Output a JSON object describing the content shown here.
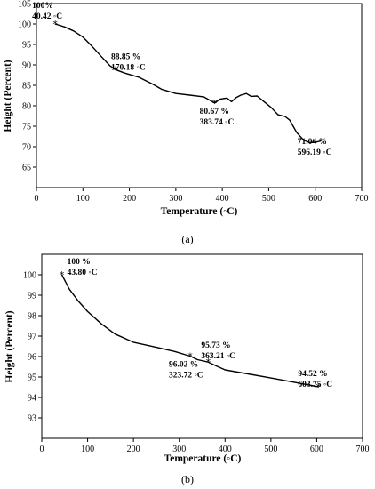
{
  "chart_data": [
    {
      "type": "line",
      "panel": "a",
      "caption": "(a)",
      "xlabel": "Temperature (◦C)",
      "ylabel": "Height (Percent)",
      "xlim": [
        0,
        700
      ],
      "ylim": [
        60,
        105
      ],
      "xticks": [
        "0",
        "100",
        "200",
        "300",
        "400",
        "500",
        "600",
        "700"
      ],
      "yticks": [
        "65",
        "70",
        "75",
        "80",
        "85",
        "90",
        "95",
        "100",
        "105"
      ],
      "series": [
        {
          "x": [
            40.42,
            60,
            80,
            100,
            120,
            140,
            158,
            170.18,
            190,
            220,
            250,
            270,
            300,
            330,
            360,
            383.74,
            395,
            410,
            420,
            430,
            440,
            452,
            462,
            475,
            490,
            505,
            520,
            535,
            545,
            560,
            575,
            588,
            596.19,
            605,
            612
          ],
          "y": [
            100,
            99.3,
            98.3,
            96.8,
            94.5,
            92.0,
            89.8,
            88.85,
            88.0,
            87.0,
            85.3,
            84.0,
            83.0,
            82.6,
            82.2,
            80.67,
            81.6,
            81.9,
            81.0,
            82.0,
            82.6,
            83.0,
            82.3,
            82.4,
            81.0,
            79.6,
            77.8,
            77.4,
            76.5,
            73.5,
            71.6,
            71.0,
            71.04,
            71.2,
            71.4
          ]
        }
      ],
      "markers": [
        {
          "x": 40.42,
          "y": 100,
          "label1": "100%",
          "label2": "40.42 ◦C"
        },
        {
          "x": 170.18,
          "y": 88.85,
          "label1": "88.85 %",
          "label2": "170.18 ◦C"
        },
        {
          "x": 383.74,
          "y": 80.67,
          "label1": "80.67 %",
          "label2": "383.74 ◦C"
        },
        {
          "x": 596.19,
          "y": 71.04,
          "label1": "71.04 %",
          "label2": "596.19 ◦C"
        }
      ],
      "grid": false
    },
    {
      "type": "line",
      "panel": "b",
      "caption": "(b)",
      "xlabel": "Temperature (◦C)",
      "ylabel": "Height (Percent)",
      "xlim": [
        0,
        700
      ],
      "ylim": [
        92,
        101
      ],
      "xticks": [
        "0",
        "100",
        "200",
        "300",
        "400",
        "500",
        "600",
        "700"
      ],
      "yticks": [
        "93",
        "94",
        "95",
        "96",
        "97",
        "98",
        "99",
        "100"
      ],
      "series": [
        {
          "x": [
            43.8,
            60,
            80,
            100,
            130,
            160,
            200,
            250,
            290,
            323.72,
            340,
            363.21,
            380,
            400,
            450,
            500,
            550,
            603.75
          ],
          "y": [
            100,
            99.3,
            98.7,
            98.2,
            97.6,
            97.1,
            96.7,
            96.45,
            96.25,
            96.02,
            95.85,
            95.73,
            95.55,
            95.35,
            95.15,
            94.95,
            94.75,
            94.52
          ]
        }
      ],
      "markers": [
        {
          "x": 43.8,
          "y": 100,
          "label1": "100 %",
          "label2": "43.80 ◦C"
        },
        {
          "x": 323.72,
          "y": 96.02,
          "label1": "96.02 %",
          "label2": "323.72 ◦C"
        },
        {
          "x": 363.21,
          "y": 95.73,
          "label1": "95.73 %",
          "label2": "363.21 ◦C"
        },
        {
          "x": 603.75,
          "y": 94.52,
          "label1": "94.52 %",
          "label2": "603.75 ◦C"
        }
      ],
      "grid": false
    }
  ]
}
